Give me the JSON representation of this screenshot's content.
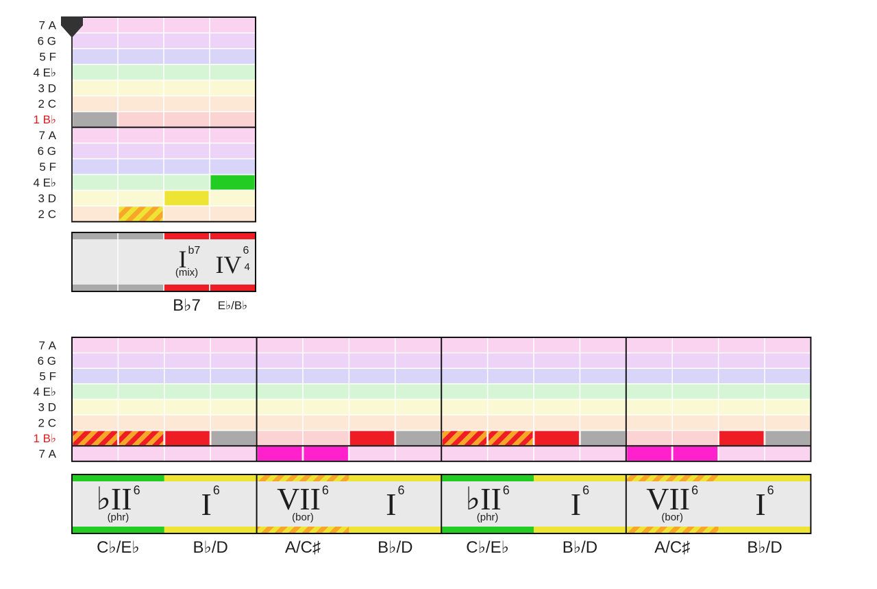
{
  "colors": {
    "row7": "#f9d3f0",
    "row6": "#ecd3f7",
    "row5": "#d9d5f9",
    "row4": "#d5f5d5",
    "row3": "#fbf9d3",
    "row2": "#fde8d5",
    "row1": "#fbd3d3",
    "gray": "#aaaaaa",
    "red": "#ee1c24",
    "green": "#22cc22",
    "yellow": "#eee433",
    "magenta": "#ff22cc",
    "orange": "#f7a62a",
    "chordbg": "#e9e9e9",
    "tonicLabel": "#e0191e",
    "text": "#1e1e1e"
  },
  "legend": {
    "mix": "(mix)",
    "phr": "(phr)",
    "bor": "(bor)"
  },
  "systems": [
    {
      "rows": [
        {
          "deg": "7",
          "note": "A",
          "tonic": false,
          "band": "row7"
        },
        {
          "deg": "6",
          "note": "G",
          "tonic": false,
          "band": "row6"
        },
        {
          "deg": "5",
          "note": "F",
          "tonic": false,
          "band": "row5"
        },
        {
          "deg": "4",
          "note": "E♭",
          "tonic": false,
          "band": "row4"
        },
        {
          "deg": "3",
          "note": "D",
          "tonic": false,
          "band": "row3"
        },
        {
          "deg": "2",
          "note": "C",
          "tonic": false,
          "band": "row2"
        },
        {
          "deg": "1",
          "note": "B♭",
          "tonic": true,
          "band": "row1"
        },
        {
          "deg": "7",
          "note": "A",
          "tonic": false,
          "band": "row7"
        },
        {
          "deg": "6",
          "note": "G",
          "tonic": false,
          "band": "row6"
        },
        {
          "deg": "5",
          "note": "F",
          "tonic": false,
          "band": "row5"
        },
        {
          "deg": "4",
          "note": "E♭",
          "tonic": false,
          "band": "row4"
        },
        {
          "deg": "3",
          "note": "D",
          "tonic": false,
          "band": "row3"
        },
        {
          "deg": "2",
          "note": "C",
          "tonic": false,
          "band": "row2"
        }
      ],
      "measures": 1,
      "beats_per_measure": 4,
      "separators": [
        7
      ],
      "playhead": true,
      "notes": [
        {
          "row": 6,
          "start": 0,
          "len": 1,
          "fill": "gray"
        },
        {
          "row": 12,
          "start": 1,
          "len": 1,
          "fill": "stripe"
        },
        {
          "row": 11,
          "start": 2,
          "len": 1,
          "fill": "yellow"
        },
        {
          "row": 10,
          "start": 3,
          "len": 1,
          "fill": "green"
        }
      ],
      "chords": [
        {
          "start": 0,
          "len": 2,
          "numeral": "",
          "sup": "",
          "sub": "",
          "mode": "",
          "bar": "gray",
          "name": "",
          "nameSmall": false
        },
        {
          "start": 2,
          "len": 1,
          "numeral": "I",
          "sup": "b7",
          "sub": "",
          "mode": "mix",
          "bar": "red",
          "name": "B♭7",
          "nameSmall": false
        },
        {
          "start": 3,
          "len": 1,
          "numeral": "IV",
          "sup": "6",
          "sub": "4",
          "mode": "",
          "bar": "red",
          "name": "E♭/B♭",
          "nameSmall": true
        }
      ]
    },
    {
      "rows": [
        {
          "deg": "7",
          "note": "A",
          "tonic": false,
          "band": "row7"
        },
        {
          "deg": "6",
          "note": "G",
          "tonic": false,
          "band": "row6"
        },
        {
          "deg": "5",
          "note": "F",
          "tonic": false,
          "band": "row5"
        },
        {
          "deg": "4",
          "note": "E♭",
          "tonic": false,
          "band": "row4"
        },
        {
          "deg": "3",
          "note": "D",
          "tonic": false,
          "band": "row3"
        },
        {
          "deg": "2",
          "note": "C",
          "tonic": false,
          "band": "row2"
        },
        {
          "deg": "1",
          "note": "B♭",
          "tonic": true,
          "band": "row1"
        },
        {
          "deg": "7",
          "note": "A",
          "tonic": false,
          "band": "row7"
        }
      ],
      "measures": 4,
      "beats_per_measure": 4,
      "separators": [
        7
      ],
      "playhead": false,
      "notes": [
        {
          "row": 6,
          "start": 0,
          "len": 1,
          "fill": "stripe"
        },
        {
          "row": 6,
          "start": 1,
          "len": 1,
          "fill": "stripe"
        },
        {
          "row": 6,
          "start": 2,
          "len": 1,
          "fill": "red"
        },
        {
          "row": 6,
          "start": 3,
          "len": 1,
          "fill": "gray"
        },
        {
          "row": 7,
          "start": 4,
          "len": 1,
          "fill": "magenta"
        },
        {
          "row": 7,
          "start": 5,
          "len": 1,
          "fill": "magenta"
        },
        {
          "row": 6,
          "start": 6,
          "len": 1,
          "fill": "red"
        },
        {
          "row": 6,
          "start": 7,
          "len": 1,
          "fill": "gray"
        },
        {
          "row": 6,
          "start": 8,
          "len": 1,
          "fill": "stripe"
        },
        {
          "row": 6,
          "start": 9,
          "len": 1,
          "fill": "stripe"
        },
        {
          "row": 6,
          "start": 10,
          "len": 1,
          "fill": "red"
        },
        {
          "row": 6,
          "start": 11,
          "len": 1,
          "fill": "gray"
        },
        {
          "row": 7,
          "start": 12,
          "len": 1,
          "fill": "magenta"
        },
        {
          "row": 7,
          "start": 13,
          "len": 1,
          "fill": "magenta"
        },
        {
          "row": 6,
          "start": 14,
          "len": 1,
          "fill": "red"
        },
        {
          "row": 6,
          "start": 15,
          "len": 1,
          "fill": "gray"
        }
      ],
      "chords": [
        {
          "start": 0,
          "len": 2,
          "numeral": "♭II",
          "sup": "6",
          "sub": "",
          "mode": "phr",
          "bar": "green",
          "name": "C♭/E♭",
          "nameSmall": false
        },
        {
          "start": 2,
          "len": 2,
          "numeral": "I",
          "sup": "6",
          "sub": "",
          "mode": "",
          "bar": "yellow",
          "name": "B♭/D",
          "nameSmall": false
        },
        {
          "start": 4,
          "len": 2,
          "numeral": "VII",
          "sup": "6",
          "sub": "",
          "mode": "bor",
          "bar": "stripe",
          "name": "A/C♯",
          "nameSmall": false
        },
        {
          "start": 6,
          "len": 2,
          "numeral": "I",
          "sup": "6",
          "sub": "",
          "mode": "",
          "bar": "yellow",
          "name": "B♭/D",
          "nameSmall": false
        },
        {
          "start": 8,
          "len": 2,
          "numeral": "♭II",
          "sup": "6",
          "sub": "",
          "mode": "phr",
          "bar": "green",
          "name": "C♭/E♭",
          "nameSmall": false
        },
        {
          "start": 10,
          "len": 2,
          "numeral": "I",
          "sup": "6",
          "sub": "",
          "mode": "",
          "bar": "yellow",
          "name": "B♭/D",
          "nameSmall": false
        },
        {
          "start": 12,
          "len": 2,
          "numeral": "VII",
          "sup": "6",
          "sub": "",
          "mode": "bor",
          "bar": "stripe",
          "name": "A/C♯",
          "nameSmall": false
        },
        {
          "start": 14,
          "len": 2,
          "numeral": "I",
          "sup": "6",
          "sub": "",
          "mode": "",
          "bar": "yellow",
          "name": "B♭/D",
          "nameSmall": false
        }
      ]
    }
  ]
}
